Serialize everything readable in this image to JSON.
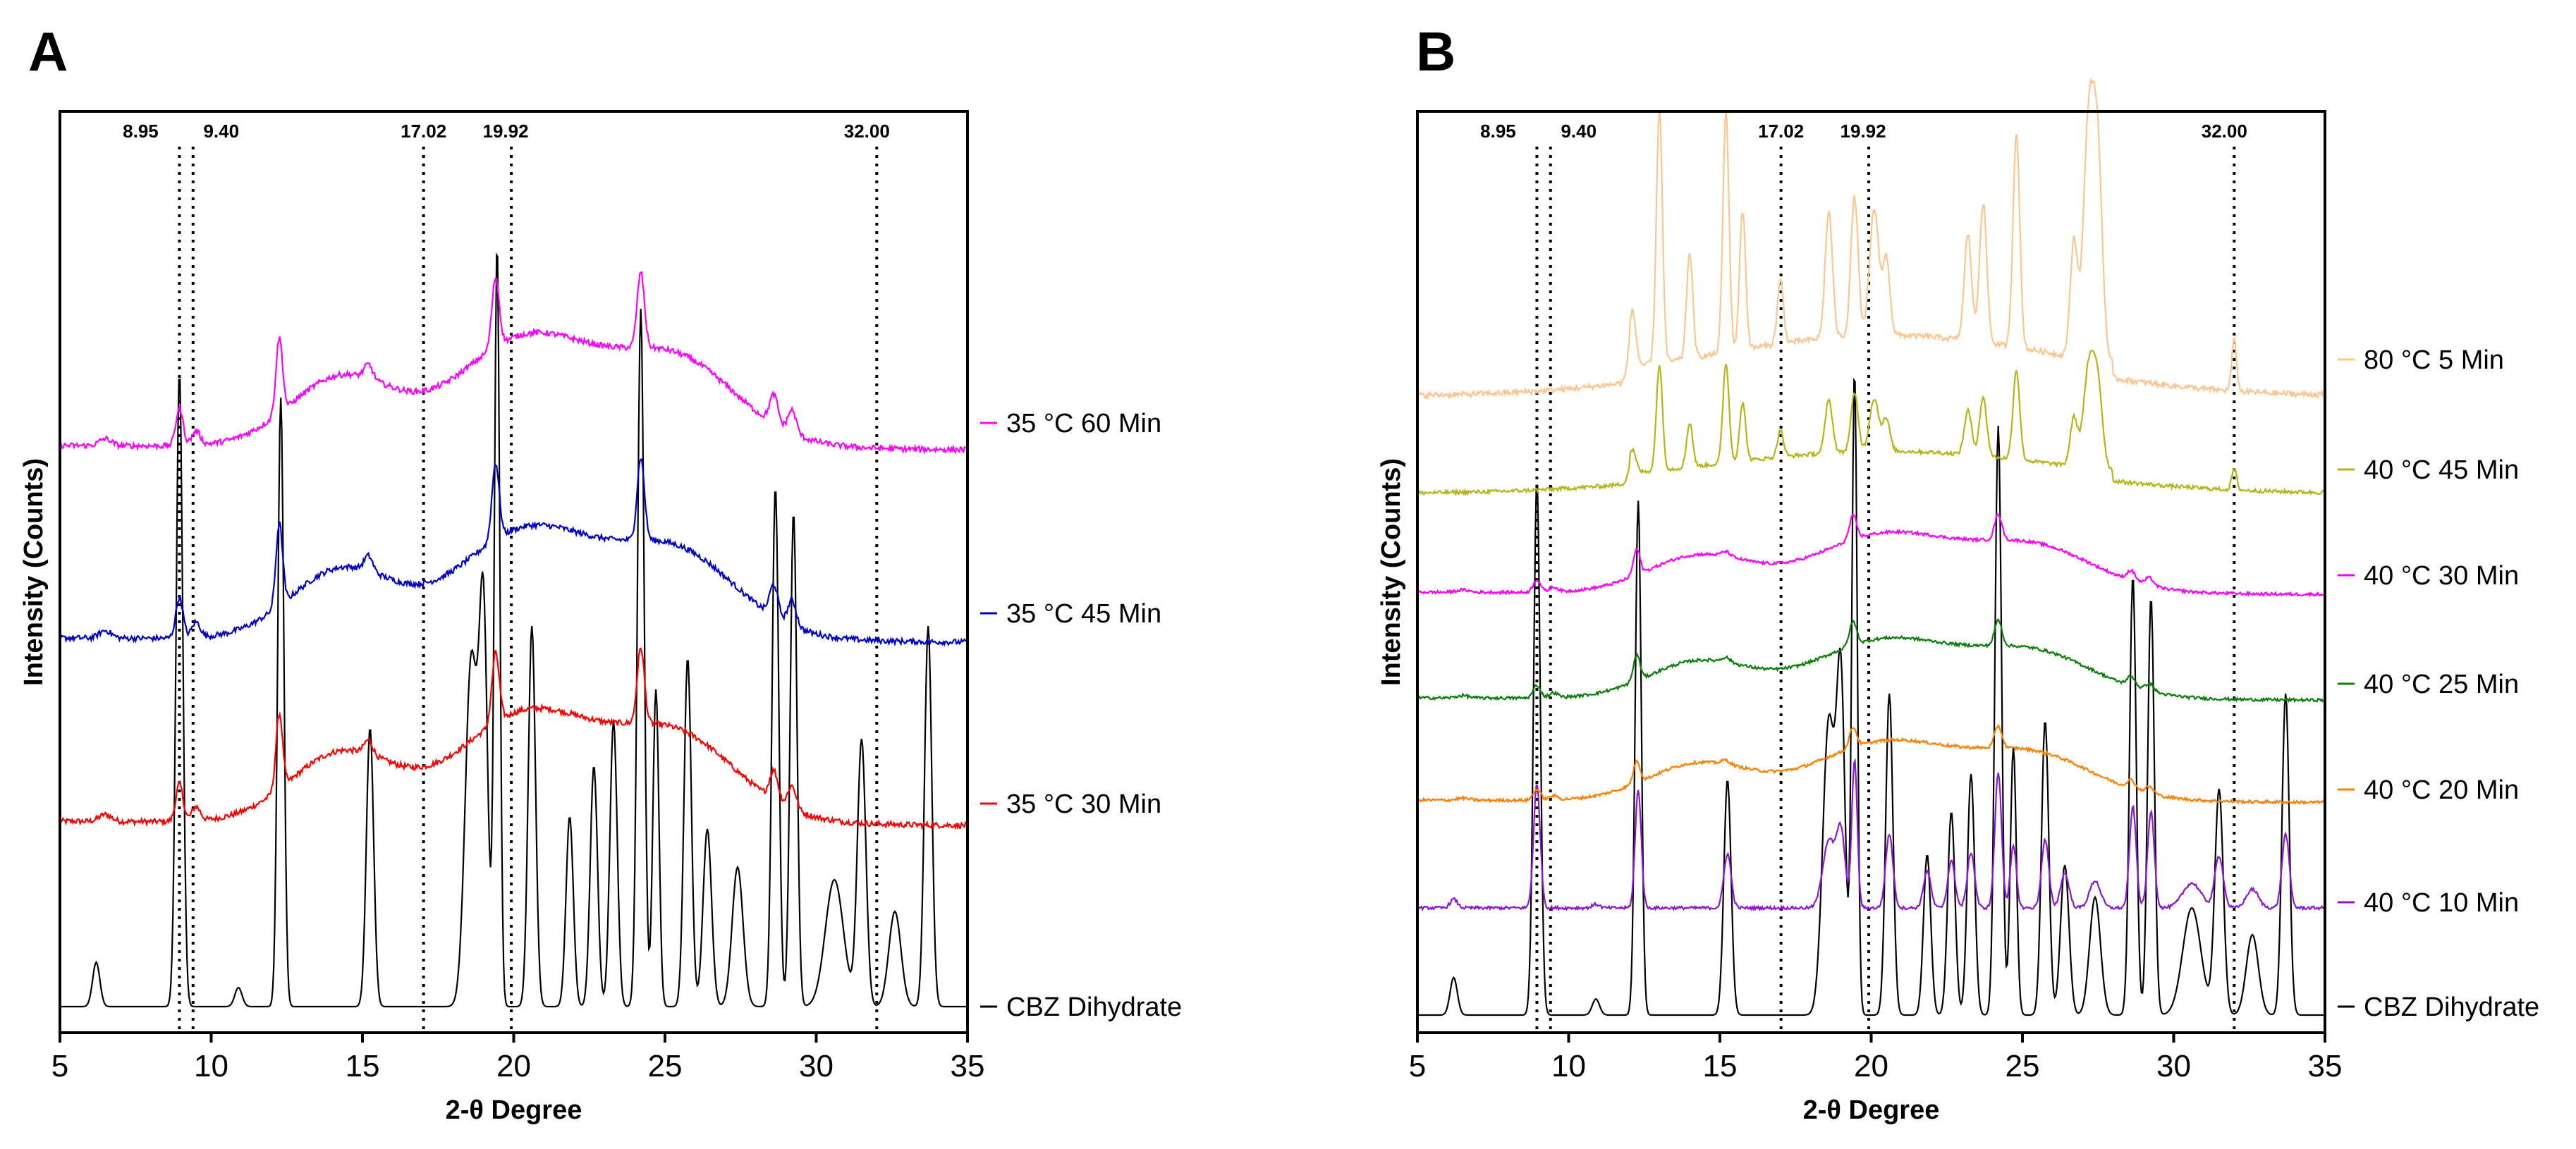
{
  "chart_data": [
    {
      "panel": "A",
      "type": "line",
      "xlabel": "2-θ Degree",
      "ylabel": "Intensity (Counts)",
      "xlim": [
        5,
        35
      ],
      "xticks": [
        "5",
        "10",
        "15",
        "20",
        "25",
        "30",
        "35"
      ],
      "reference_lines": [
        {
          "x": 8.95,
          "label": "8.95"
        },
        {
          "x": 9.4,
          "label": "9.40"
        },
        {
          "x": 17.02,
          "label": "17.02"
        },
        {
          "x": 19.92,
          "label": "19.92"
        },
        {
          "x": 32.0,
          "label": "32.00"
        }
      ],
      "series": [
        {
          "name": "CBZ Dihydrate",
          "color": "#000000",
          "style": "dihydrate",
          "noise": 0.0
        },
        {
          "name": "35 °C 30 Min",
          "color": "#ff0000",
          "style": "amorphous",
          "peak_scale": 0.55,
          "noise": 0.12
        },
        {
          "name": "35 °C 45 Min",
          "color": "#0000cc",
          "style": "amorphous",
          "peak_scale": 0.6,
          "noise": 0.12
        },
        {
          "name": "35 °C 60 Min",
          "color": "#ff00ff",
          "style": "amorphous",
          "peak_scale": 0.55,
          "noise": 0.12
        }
      ]
    },
    {
      "panel": "B",
      "type": "line",
      "xlabel": "2-θ Degree",
      "ylabel": "Intensity (Counts)",
      "xlim": [
        5,
        35
      ],
      "xticks": [
        "5",
        "10",
        "15",
        "20",
        "25",
        "30",
        "35"
      ],
      "reference_lines": [
        {
          "x": 8.95,
          "label": "8.95"
        },
        {
          "x": 9.4,
          "label": "9.40"
        },
        {
          "x": 17.02,
          "label": "17.02"
        },
        {
          "x": 19.92,
          "label": "19.92"
        },
        {
          "x": 32.0,
          "label": "32.00"
        }
      ],
      "series": [
        {
          "name": "CBZ Dihydrate",
          "color": "#000000",
          "style": "dihydrate",
          "noise": 0.0
        },
        {
          "name": "40 °C 10 Min",
          "color": "#8b16d6",
          "style": "dihydrate_small",
          "noise": 0.08
        },
        {
          "name": "40 °C 20 Min",
          "color": "#ff7f00",
          "style": "amorphous",
          "peak_scale": 0.3,
          "noise": 0.12
        },
        {
          "name": "40 °C 25 Min",
          "color": "#0a7d0a",
          "style": "amorphous",
          "peak_scale": 0.35,
          "noise": 0.12
        },
        {
          "name": "40 °C 30 Min",
          "color": "#ff00ff",
          "style": "amorphous",
          "peak_scale": 0.35,
          "noise": 0.12
        },
        {
          "name": "40 °C 45 Min",
          "color": "#b5b515",
          "style": "crystal",
          "peak_scale": 0.6,
          "noise": 0.1
        },
        {
          "name": "80 °C 5 Min",
          "color": "#ffc590",
          "style": "crystal",
          "peak_scale": 1.0,
          "noise": 0.1
        }
      ]
    }
  ],
  "figure": {
    "panel_letters": [
      "A",
      "B"
    ]
  }
}
